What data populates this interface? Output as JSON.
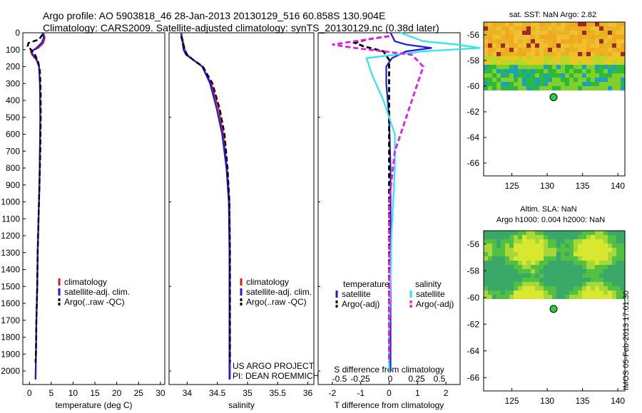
{
  "header": {
    "line1": "Argo profile: AO 5903818_46 28-Jan-2013 20130129_516 60.858S 130.904E",
    "line2": "Climatology: CARS2009. Satellite-adjusted climatology: synTS_20130129.nc (0.38d later)"
  },
  "stamp": "IMOS 05-Feb-2013 17:01:30",
  "colors": {
    "climatology": "#e11b1b",
    "satellite": "#1a1ae6",
    "argo": "#000000",
    "sat_salinity": "#2ee6e6",
    "argo_adj": "#e61ae6"
  },
  "chart_data": [
    {
      "type": "line",
      "panel": "temperature",
      "xlabel": "temperature (deg C)",
      "ylabel": "",
      "xlim": [
        -1.5,
        31
      ],
      "ylim": [
        2080,
        0
      ],
      "xticks": [
        0,
        5,
        10,
        15,
        20,
        25,
        30
      ],
      "yticks": [
        0,
        100,
        200,
        300,
        400,
        500,
        600,
        700,
        800,
        900,
        1000,
        1100,
        1200,
        1300,
        1400,
        1500,
        1600,
        1700,
        1800,
        1900,
        2000
      ],
      "legend": {
        "placement": "bottom-center",
        "entries": [
          "climatology",
          "satellite-adj. clim.",
          "Argo(..raw -QC)"
        ]
      },
      "series": [
        {
          "name": "climatology",
          "style": "solid",
          "points": [
            [
              3.2,
              0
            ],
            [
              3.5,
              30
            ],
            [
              3.2,
              60
            ],
            [
              2.0,
              90
            ],
            [
              0.3,
              110
            ],
            [
              0.6,
              130
            ],
            [
              1.6,
              160
            ],
            [
              2.2,
              200
            ],
            [
              2.4,
              300
            ],
            [
              2.5,
              500
            ],
            [
              2.4,
              700
            ],
            [
              2.3,
              900
            ],
            [
              2.1,
              1100
            ],
            [
              1.9,
              1300
            ],
            [
              1.8,
              1500
            ],
            [
              1.6,
              1700
            ],
            [
              1.5,
              1900
            ],
            [
              1.4,
              2050
            ]
          ]
        },
        {
          "name": "satellite-adj. clim.",
          "style": "solid",
          "points": [
            [
              3.0,
              0
            ],
            [
              3.3,
              30
            ],
            [
              2.8,
              60
            ],
            [
              1.6,
              90
            ],
            [
              0.5,
              110
            ],
            [
              0.8,
              130
            ],
            [
              1.7,
              160
            ],
            [
              2.2,
              200
            ],
            [
              2.4,
              300
            ],
            [
              2.5,
              500
            ],
            [
              2.4,
              700
            ],
            [
              2.3,
              900
            ],
            [
              2.1,
              1100
            ],
            [
              1.9,
              1300
            ],
            [
              1.8,
              1500
            ],
            [
              1.6,
              1700
            ],
            [
              1.5,
              1900
            ],
            [
              1.4,
              2050
            ]
          ]
        },
        {
          "name": "Argo(..raw -QC)",
          "style": "dashed",
          "points": [
            [
              3.0,
              10
            ],
            [
              2.2,
              40
            ],
            [
              -0.2,
              60
            ],
            [
              -0.4,
              80
            ],
            [
              0.4,
              100
            ],
            [
              1.3,
              130
            ],
            [
              2.0,
              170
            ],
            [
              2.4,
              220
            ],
            [
              2.6,
              350
            ],
            [
              2.6,
              500
            ],
            [
              2.5,
              700
            ],
            [
              2.3,
              900
            ],
            [
              2.1,
              1100
            ],
            [
              1.9,
              1300
            ],
            [
              1.8,
              1500
            ],
            [
              1.6,
              1700
            ],
            [
              1.5,
              1900
            ],
            [
              1.4,
              1950
            ]
          ]
        }
      ]
    },
    {
      "type": "line",
      "panel": "salinity",
      "xlabel": "salinity",
      "ylabel": "",
      "xlim": [
        33.7,
        36.1
      ],
      "ylim": [
        2080,
        0
      ],
      "xticks": [
        34,
        34.5,
        35,
        35.5,
        36
      ],
      "legend": {
        "placement": "bottom-center",
        "entries": [
          "climatology",
          "satellite-adj. clim.",
          "Argo(..raw -QC)"
        ]
      },
      "annotation": [
        "US ARGO PROJECT",
        "PI: DEAN ROEMMICH"
      ],
      "series": [
        {
          "name": "climatology",
          "style": "solid",
          "points": [
            [
              33.9,
              0
            ],
            [
              33.93,
              50
            ],
            [
              33.96,
              100
            ],
            [
              34.0,
              130
            ],
            [
              34.1,
              160
            ],
            [
              34.25,
              200
            ],
            [
              34.4,
              300
            ],
            [
              34.52,
              450
            ],
            [
              34.6,
              600
            ],
            [
              34.66,
              800
            ],
            [
              34.7,
              1000
            ],
            [
              34.71,
              1300
            ],
            [
              34.71,
              1700
            ],
            [
              34.71,
              2050
            ]
          ]
        },
        {
          "name": "satellite-adj. clim.",
          "style": "solid",
          "points": [
            [
              33.9,
              0
            ],
            [
              33.92,
              50
            ],
            [
              33.94,
              100
            ],
            [
              33.98,
              130
            ],
            [
              34.1,
              160
            ],
            [
              34.25,
              200
            ],
            [
              34.38,
              300
            ],
            [
              34.49,
              450
            ],
            [
              34.58,
              600
            ],
            [
              34.65,
              800
            ],
            [
              34.69,
              1000
            ],
            [
              34.7,
              1300
            ],
            [
              34.7,
              1700
            ],
            [
              34.7,
              2050
            ]
          ]
        },
        {
          "name": "Argo(..raw -QC)",
          "style": "dashed",
          "points": [
            [
              33.9,
              20
            ],
            [
              33.93,
              60
            ],
            [
              33.96,
              100
            ],
            [
              34.0,
              130
            ],
            [
              34.1,
              160
            ],
            [
              34.26,
              200
            ],
            [
              34.42,
              300
            ],
            [
              34.54,
              450
            ],
            [
              34.62,
              600
            ],
            [
              34.67,
              800
            ],
            [
              34.7,
              1000
            ],
            [
              34.71,
              1300
            ],
            [
              34.71,
              1700
            ],
            [
              34.71,
              1950
            ]
          ]
        }
      ]
    },
    {
      "type": "line",
      "panel": "difference",
      "xlabel": "T difference from climatology",
      "top_label": "S difference from climatology",
      "xlim": [
        -2.5,
        2.5
      ],
      "ylim": [
        2080,
        0
      ],
      "xticks": [
        -2,
        -1,
        0,
        1,
        2
      ],
      "top_ticks": [
        "-0.5",
        "-0.25",
        "0",
        "0.25",
        "0.5"
      ],
      "legend": {
        "placement": "bottom",
        "headings": [
          "temperature",
          "salinity"
        ],
        "entries": [
          "satellite",
          "Argo(-adj)",
          "satellite",
          "Argo(-adj)"
        ]
      },
      "series": [
        {
          "name": "satellite",
          "group": "temperature",
          "style": "solid",
          "points": [
            [
              0.05,
              0
            ],
            [
              0.2,
              50
            ],
            [
              0.6,
              70
            ],
            [
              1.5,
              90
            ],
            [
              0.6,
              110
            ],
            [
              0.1,
              150
            ],
            [
              -0.1,
              200
            ],
            [
              -0.1,
              300
            ],
            [
              0.0,
              500
            ],
            [
              0.05,
              800
            ],
            [
              0.05,
              1200
            ],
            [
              0.05,
              1700
            ],
            [
              0.05,
              2000
            ]
          ]
        },
        {
          "name": "Argo(-adj)",
          "group": "temperature",
          "style": "dashed",
          "points": [
            [
              0.0,
              20
            ],
            [
              -0.8,
              40
            ],
            [
              -1.2,
              60
            ],
            [
              -0.9,
              80
            ],
            [
              -0.2,
              110
            ],
            [
              0.0,
              160
            ],
            [
              0.0,
              300
            ],
            [
              0.0,
              600
            ],
            [
              0.0,
              1000
            ],
            [
              0.0,
              1500
            ],
            [
              0.0,
              1950
            ]
          ]
        },
        {
          "name": "satellite",
          "group": "salinity",
          "style": "solid",
          "points": [
            [
              0.1,
              0
            ],
            [
              0.3,
              50
            ],
            [
              0.6,
              70
            ],
            [
              0.8,
              90
            ],
            [
              0.3,
              110
            ],
            [
              -0.2,
              150
            ],
            [
              -0.15,
              250
            ],
            [
              -0.05,
              400
            ],
            [
              0.05,
              600
            ],
            [
              0.05,
              800
            ],
            [
              0.02,
              1200
            ],
            [
              0.0,
              1800
            ],
            [
              0.0,
              2000
            ]
          ]
        },
        {
          "name": "Argo(-adj)",
          "group": "salinity",
          "style": "dashed",
          "points": [
            [
              0.0,
              20
            ],
            [
              -0.3,
              50
            ],
            [
              -0.5,
              70
            ],
            [
              -0.3,
              90
            ],
            [
              0.2,
              130
            ],
            [
              0.3,
              200
            ],
            [
              0.25,
              300
            ],
            [
              0.15,
              500
            ],
            [
              0.05,
              700
            ],
            [
              0.0,
              1000
            ],
            [
              0.0,
              1500
            ],
            [
              0.0,
              1950
            ]
          ]
        }
      ]
    },
    {
      "type": "heatmap",
      "panel": "sst-map",
      "title": "sat. SST: NaN Argo: 2.82",
      "xlim": [
        121,
        141
      ],
      "ylim": [
        -67,
        -55
      ],
      "xticks": [
        125,
        130,
        135,
        140
      ],
      "yticks": [
        -56,
        -58,
        -60,
        -62,
        -64,
        -66
      ],
      "data_lat_range": [
        -60.2,
        -55
      ],
      "argo_position": [
        130.904,
        -60.858
      ]
    },
    {
      "type": "heatmap",
      "panel": "sla-map",
      "title": "Altim. SLA: NaN",
      "subtitle": "Argo h1000: 0.004 h2000: NaN",
      "xlim": [
        121,
        141
      ],
      "ylim": [
        -67,
        -55
      ],
      "xticks": [
        125,
        130,
        135,
        140
      ],
      "yticks": [
        -56,
        -58,
        -60,
        -62,
        -64,
        -66
      ],
      "data_lat_range": [
        -60.1,
        -55
      ],
      "argo_position": [
        130.904,
        -60.858
      ]
    }
  ]
}
